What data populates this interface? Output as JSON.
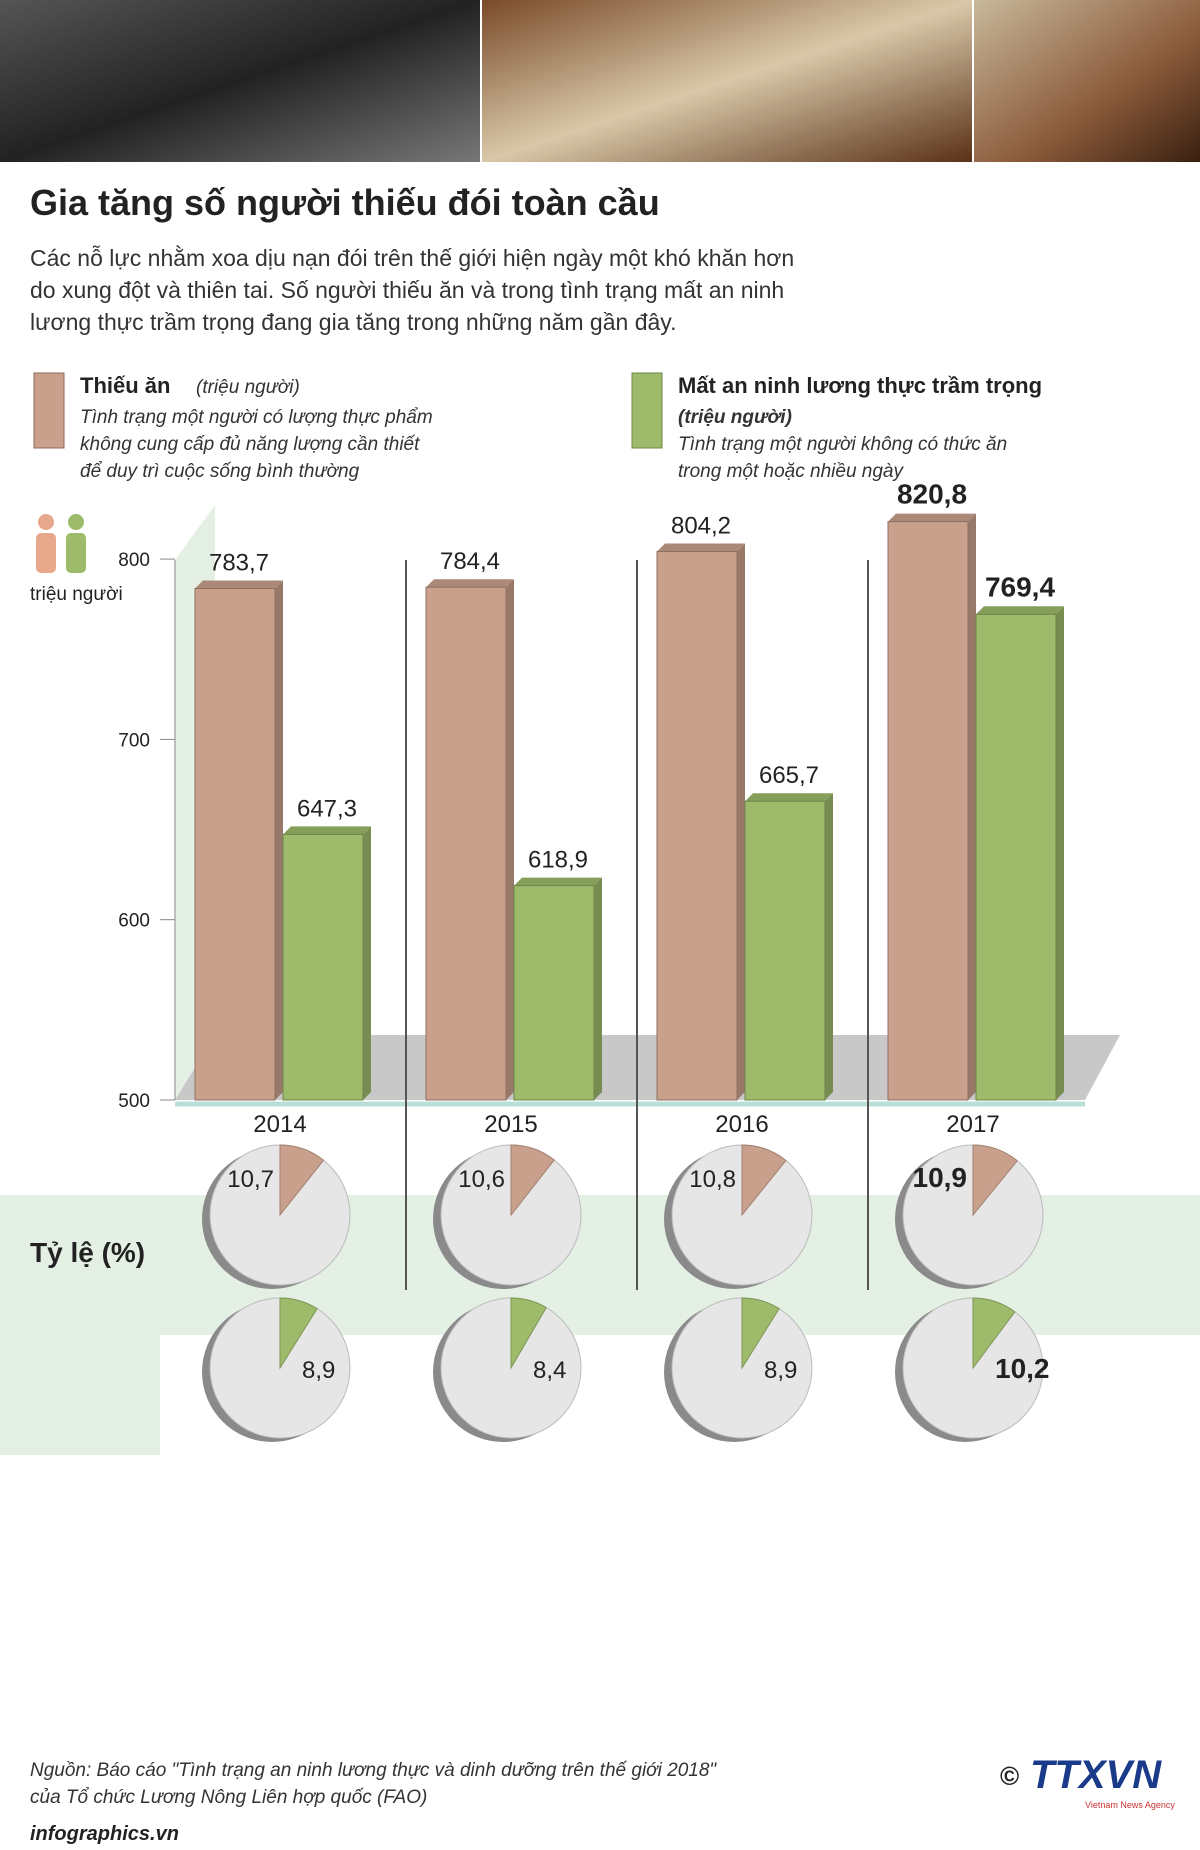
{
  "header": {
    "title": "Gia tăng số người thiếu đói toàn cầu",
    "description": [
      "Các nỗ lực nhằm xoa dịu nạn đói trên thế giới hiện ngày một khó khăn hơn",
      "do xung đột và thiên tai. Số người thiếu ăn và trong tình trạng mất an ninh",
      "lương thực trầm trọng đang gia tăng trong những năm gần đây."
    ]
  },
  "chart_data": [
    {
      "type": "bar",
      "ylabel": "triệu người",
      "categories": [
        "2014",
        "2015",
        "2016",
        "2017"
      ],
      "series": [
        {
          "name": "Thiếu ăn",
          "color": "#c9a08c",
          "values": [
            783.7,
            784.4,
            804.2,
            820.8
          ],
          "value_labels": [
            "783,7",
            "784,4",
            "804,2",
            "820,8"
          ]
        },
        {
          "name": "Mất an ninh lương thực trầm trọng",
          "color": "#9dbb6a",
          "values": [
            647.3,
            618.9,
            665.7,
            769.4
          ],
          "value_labels": [
            "647,3",
            "618,9",
            "665,7",
            "769,4"
          ]
        }
      ],
      "legend": [
        {
          "unit": "(triệu người)",
          "description": [
            "Tình trạng một người có lượng thực phẩm",
            "không cung cấp đủ năng lượng cần thiết",
            "để duy trì cuộc sống bình thường"
          ]
        },
        {
          "unit": "(triệu người)",
          "description": [
            "Tình trạng một người không có thức ăn",
            "trong một hoặc nhiều ngày"
          ]
        }
      ],
      "ylim": [
        500,
        830
      ],
      "yticks": [
        500,
        600,
        700,
        800
      ]
    },
    {
      "type": "pie",
      "title": "Tỷ lệ (%)",
      "series": [
        {
          "color": "#c9a08c",
          "values": [
            10.7,
            10.6,
            10.8,
            10.9
          ],
          "value_labels": [
            "10,7",
            "10,6",
            "10,8",
            "10,9"
          ]
        },
        {
          "color": "#9dbb6a",
          "values": [
            8.9,
            8.4,
            8.9,
            10.2
          ],
          "value_labels": [
            "8,9",
            "8,4",
            "8,9",
            "10,2"
          ]
        }
      ]
    }
  ],
  "footer": {
    "source": [
      "Nguồn: Báo cáo \"Tình trạng an ninh lương thực và dinh dưỡng trên thế giới 2018\"",
      "của Tổ chức Lương Nông Liên hợp quốc (FAO)"
    ],
    "site": "infographics.vn",
    "copyright": "©",
    "logo": "TTXVN",
    "agency": "Vietnam News Agency"
  }
}
